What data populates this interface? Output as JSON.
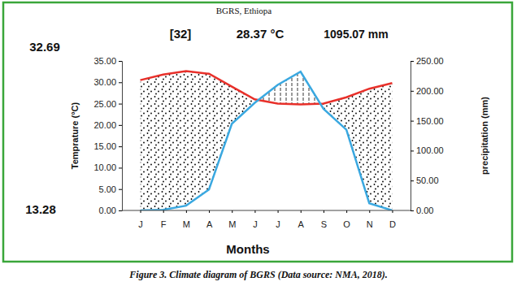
{
  "chart_data": {
    "type": "line",
    "title": "BGRS, Ethiopa",
    "annotations": [
      "[32]",
      "28.37 °C",
      "1095.07 mm",
      "32.69",
      "13.28"
    ],
    "x_label": "Months",
    "y_label": "Temprature (°C)",
    "y2_label": "precipitation (mm)",
    "caption": "Figure 3. Climate diagram of BGRS (Data source: NMA, 2018).",
    "categories": [
      "J",
      "F",
      "M",
      "A",
      "M",
      "J",
      "J",
      "A",
      "S",
      "O",
      "N",
      "D"
    ],
    "series": [
      {
        "color": "#e8302a",
        "axis": "y",
        "values": [
          30.5,
          31.8,
          32.6,
          32.0,
          29.0,
          26.0,
          25.0,
          24.8,
          25.0,
          26.5,
          28.5,
          29.8
        ]
      },
      {
        "color": "#3aa8e0",
        "axis": "y2",
        "values": [
          0,
          1,
          8,
          35,
          145,
          180,
          210,
          232,
          170,
          135,
          12,
          0
        ]
      }
    ],
    "ylim": [
      0,
      35
    ],
    "yticks": [
      {
        "value": 0,
        "label": "0.00"
      },
      {
        "value": 5,
        "label": "5.00"
      },
      {
        "value": 10,
        "label": "10.00"
      },
      {
        "value": 15,
        "label": "15.00"
      },
      {
        "value": 20,
        "label": "20.00"
      },
      {
        "value": 25,
        "label": "25.00"
      },
      {
        "value": 30,
        "label": "30.00"
      },
      {
        "value": 35,
        "label": "35.00"
      }
    ],
    "y2lim": [
      0,
      250
    ],
    "y2ticks": [
      {
        "value": 0,
        "label": "0.00"
      },
      {
        "value": 50,
        "label": "50.00"
      },
      {
        "value": 100,
        "label": "100.00"
      },
      {
        "value": 150,
        "label": "150.00"
      },
      {
        "value": 200,
        "label": "200.00"
      },
      {
        "value": 250,
        "label": "250.00"
      }
    ],
    "grid": false
  }
}
